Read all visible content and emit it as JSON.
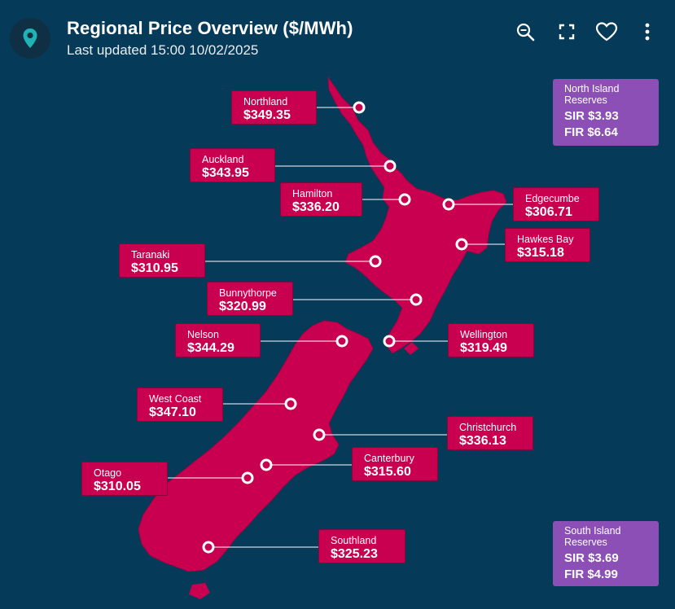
{
  "header": {
    "title": "Regional Price Overview ($/MWh)",
    "subtitle": "Last updated 15:00 10/02/2025",
    "icons": [
      "location-pin-icon",
      "zoom-out-icon",
      "fullscreen-icon",
      "heart-icon",
      "more-vertical-icon"
    ]
  },
  "colors": {
    "background": "#063a59",
    "land": "#c8004f",
    "label": "#c8004f",
    "reserve": "#8b4fb5"
  },
  "regions": [
    {
      "id": "northland",
      "name": "Northland",
      "price": "$349.35"
    },
    {
      "id": "auckland",
      "name": "Auckland",
      "price": "$343.95"
    },
    {
      "id": "hamilton",
      "name": "Hamilton",
      "price": "$336.20"
    },
    {
      "id": "edgecumbe",
      "name": "Edgecumbe",
      "price": "$306.71"
    },
    {
      "id": "hawkes-bay",
      "name": "Hawkes Bay",
      "price": "$315.18"
    },
    {
      "id": "taranaki",
      "name": "Taranaki",
      "price": "$310.95"
    },
    {
      "id": "bunnythorpe",
      "name": "Bunnythorpe",
      "price": "$320.99"
    },
    {
      "id": "nelson",
      "name": "Nelson",
      "price": "$344.29"
    },
    {
      "id": "wellington",
      "name": "Wellington",
      "price": "$319.49"
    },
    {
      "id": "west-coast",
      "name": "West Coast",
      "price": "$347.10"
    },
    {
      "id": "christchurch",
      "name": "Christchurch",
      "price": "$336.13"
    },
    {
      "id": "canterbury",
      "name": "Canterbury",
      "price": "$315.60"
    },
    {
      "id": "otago",
      "name": "Otago",
      "price": "$310.05"
    },
    {
      "id": "southland",
      "name": "Southland",
      "price": "$325.23"
    }
  ],
  "reserves": [
    {
      "id": "north",
      "title_line1": "North Island",
      "title_line2": "Reserves",
      "sir": "SIR $3.93",
      "fir": "FIR $6.64"
    },
    {
      "id": "south",
      "title_line1": "South Island",
      "title_line2": "Reserves",
      "sir": "SIR $3.69",
      "fir": "FIR $4.99"
    }
  ]
}
